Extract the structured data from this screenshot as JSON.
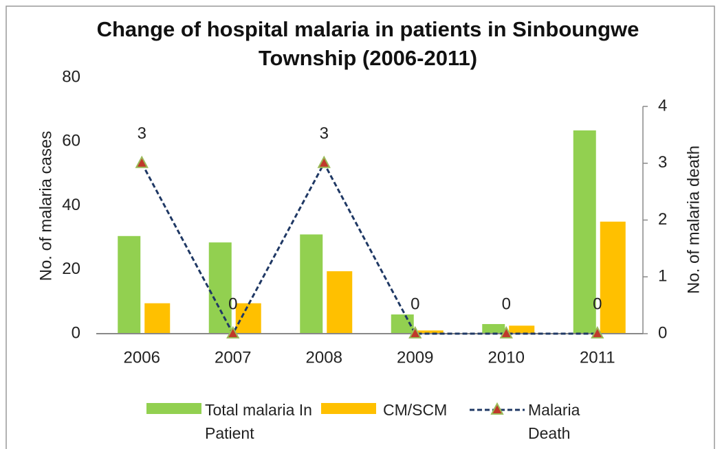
{
  "chart_data": {
    "type": "bar_line",
    "title": "Change of hospital malaria in patients in Sinboungwe Township (2006-2011)",
    "ylabel": "No. of malaria cases",
    "y2label": "No. of malaria death",
    "categories": [
      "2006",
      "2007",
      "2008",
      "2009",
      "2010",
      "2011"
    ],
    "series": [
      {
        "name": "Total malaria In Patient",
        "type": "bar",
        "color": "#92d050",
        "values": [
          30.5,
          28.5,
          31,
          6,
          3,
          63.5
        ]
      },
      {
        "name": "CM/SCM",
        "type": "bar",
        "color": "#ffc000",
        "values": [
          9.5,
          9.5,
          19.5,
          1,
          2.5,
          35
        ]
      },
      {
        "name": "Malaria Death",
        "type": "line",
        "axis": "y2",
        "color": "#1f3864",
        "values": [
          3,
          0,
          3,
          0,
          0,
          0
        ]
      }
    ],
    "ylim": [
      0,
      80
    ],
    "yticks": [
      0,
      20,
      40,
      60,
      80
    ],
    "y2lim": [
      0,
      4
    ],
    "y2ticks": [
      0,
      1,
      2,
      3,
      4
    ]
  }
}
